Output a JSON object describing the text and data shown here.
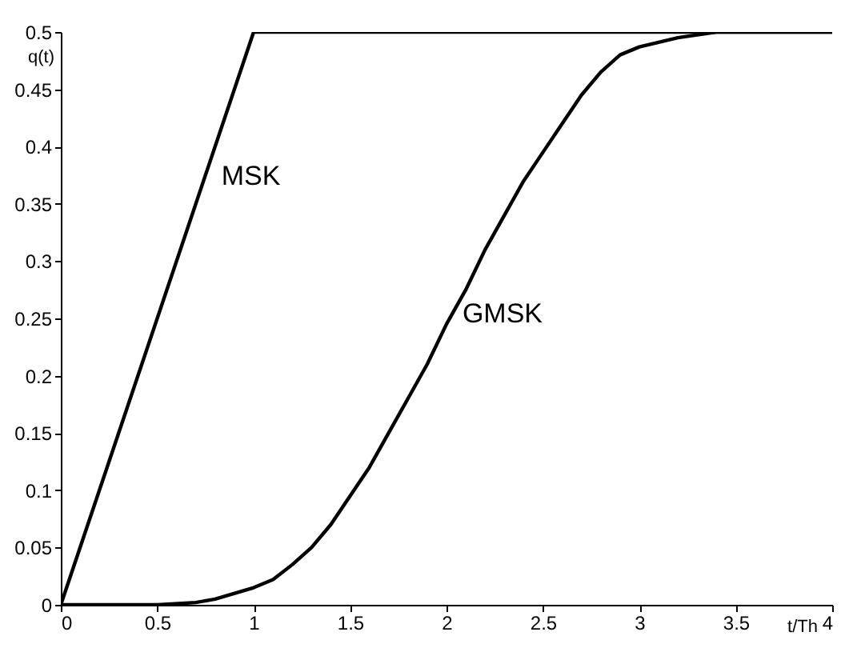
{
  "chart_data": {
    "type": "line",
    "xlabel": "t/Th",
    "ylabel": "q(t)",
    "series": [
      {
        "color": "#000000",
        "x": [
          0,
          1,
          4
        ],
        "values": [
          0,
          0.5,
          0.5
        ]
      },
      {
        "color": "#000000",
        "x": [
          0,
          0.5,
          0.7,
          0.8,
          1.0,
          1.1,
          1.2,
          1.3,
          1.4,
          1.5,
          1.6,
          1.7,
          1.8,
          1.9,
          2.0,
          2.1,
          2.2,
          2.3,
          2.4,
          2.5,
          2.6,
          2.7,
          2.8,
          2.9,
          3.0,
          3.2,
          3.4,
          4
        ],
        "values": [
          0,
          0,
          0.002,
          0.005,
          0.015,
          0.022,
          0.035,
          0.05,
          0.07,
          0.095,
          0.12,
          0.15,
          0.18,
          0.21,
          0.245,
          0.275,
          0.31,
          0.34,
          0.37,
          0.395,
          0.42,
          0.445,
          0.465,
          0.48,
          0.487,
          0.495,
          0.5,
          0.5
        ]
      }
    ],
    "annotations": [
      {
        "text": "MSK",
        "x": 0.65,
        "y": 0.33
      },
      {
        "text": "GMSK",
        "x": 1.9,
        "y": 0.21
      }
    ],
    "xlim": [
      0,
      4
    ],
    "xticks": [
      0,
      0.5,
      1,
      1.5,
      2,
      2.5,
      3,
      3.5,
      4
    ],
    "ylim": [
      0,
      0.5
    ],
    "yticks": [
      0,
      0.05,
      0.1,
      0.15,
      0.2,
      0.25,
      0.3,
      0.35,
      0.4,
      0.45,
      0.5
    ],
    "grid": false,
    "line_style": "solid",
    "marker": "none"
  }
}
